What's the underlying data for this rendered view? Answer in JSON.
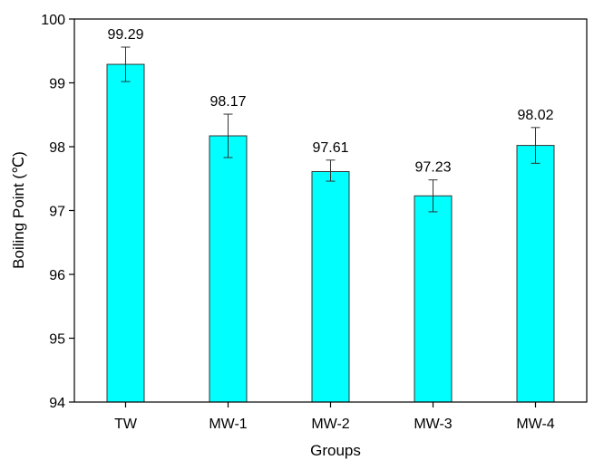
{
  "chart_data": {
    "type": "bar",
    "categories": [
      "TW",
      "MW-1",
      "MW-2",
      "MW-3",
      "MW-4"
    ],
    "values": [
      99.29,
      98.17,
      97.61,
      97.23,
      98.02
    ],
    "value_labels": [
      "99.29",
      "98.17",
      "97.61",
      "97.23",
      "98.02"
    ],
    "error_lower": [
      99.02,
      97.83,
      97.46,
      96.98,
      97.74
    ],
    "error_upper": [
      99.56,
      98.51,
      97.79,
      97.48,
      98.3
    ],
    "xlabel": "Groups",
    "ylabel": "Boiling Point (℃)",
    "ylim": [
      94,
      100
    ],
    "yticks": [
      "94",
      "95",
      "96",
      "97",
      "98",
      "99",
      "100"
    ],
    "grid": false,
    "colors": {
      "bar_fill": "#00ffff",
      "bar_stroke": "#333333",
      "axis": "#000000"
    }
  }
}
